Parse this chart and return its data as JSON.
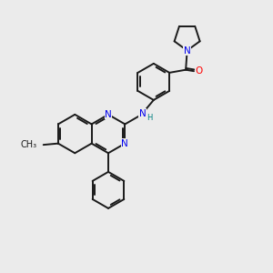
{
  "background_color": "#ebebeb",
  "bond_color": "#1a1a1a",
  "bond_width": 1.4,
  "atom_colors": {
    "N": "#0000ee",
    "O": "#ff0000",
    "C": "#1a1a1a",
    "H": "#008080"
  },
  "font_size": 7.5,
  "figure_size": [
    3.0,
    3.0
  ],
  "dpi": 100
}
